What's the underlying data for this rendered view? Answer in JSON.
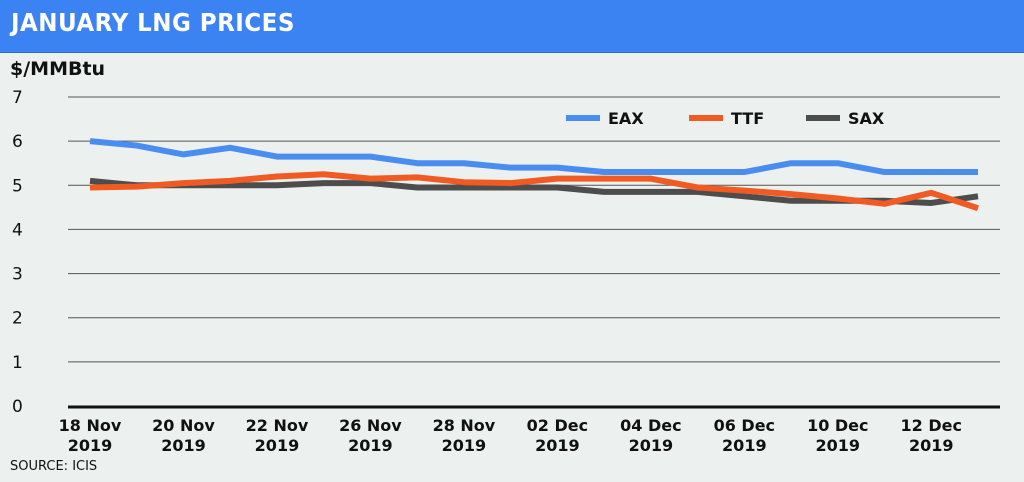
{
  "header": {
    "title": "JANUARY LNG PRICES"
  },
  "unit_label": "$/MMBtu",
  "source": "SOURCE: ICIS",
  "colors": {
    "title_bar": "#3b82f2",
    "EAX": "#4a8df0",
    "TTF": "#f05a23",
    "SAX": "#4d4d4d",
    "background": "#ecf1f0"
  },
  "chart_data": {
    "type": "line",
    "title": "JANUARY LNG PRICES",
    "xlabel": "",
    "ylabel": "$/MMBtu",
    "ylim": [
      0,
      7
    ],
    "yticks": [
      "0",
      "1",
      "2",
      "3",
      "4",
      "5",
      "6",
      "7"
    ],
    "grid": true,
    "legend_position": "top-right",
    "x": [
      "18 Nov 2019",
      "19 Nov 2019",
      "20 Nov 2019",
      "21 Nov 2019",
      "22 Nov 2019",
      "25 Nov 2019",
      "26 Nov 2019",
      "27 Nov 2019",
      "28 Nov 2019",
      "29 Nov 2019",
      "02 Dec 2019",
      "03 Dec 2019",
      "04 Dec 2019",
      "05 Dec 2019",
      "06 Dec 2019",
      "09 Dec 2019",
      "10 Dec 2019",
      "11 Dec 2019",
      "12 Dec 2019",
      "13 Dec 2019"
    ],
    "xtick_labels": [
      {
        "index": 0,
        "line1": "18 Nov",
        "line2": "2019"
      },
      {
        "index": 2,
        "line1": "20 Nov",
        "line2": "2019"
      },
      {
        "index": 4,
        "line1": "22 Nov",
        "line2": "2019"
      },
      {
        "index": 6,
        "line1": "26 Nov",
        "line2": "2019"
      },
      {
        "index": 8,
        "line1": "28 Nov",
        "line2": "2019"
      },
      {
        "index": 10,
        "line1": "02 Dec",
        "line2": "2019"
      },
      {
        "index": 12,
        "line1": "04 Dec",
        "line2": "2019"
      },
      {
        "index": 14,
        "line1": "06 Dec",
        "line2": "2019"
      },
      {
        "index": 16,
        "line1": "10 Dec",
        "line2": "2019"
      },
      {
        "index": 18,
        "line1": "12 Dec",
        "line2": "2019"
      }
    ],
    "series": [
      {
        "name": "EAX",
        "values": [
          6.0,
          5.9,
          5.7,
          5.85,
          5.65,
          5.65,
          5.65,
          5.5,
          5.5,
          5.4,
          5.4,
          5.3,
          5.3,
          5.3,
          5.3,
          5.5,
          5.5,
          5.3,
          5.3,
          5.3
        ]
      },
      {
        "name": "TTF",
        "values": [
          4.95,
          4.97,
          5.05,
          5.1,
          5.2,
          5.25,
          5.15,
          5.18,
          5.07,
          5.05,
          5.15,
          5.15,
          5.15,
          4.95,
          4.88,
          4.8,
          4.7,
          4.58,
          4.83,
          4.48
        ]
      },
      {
        "name": "SAX",
        "values": [
          5.1,
          5.0,
          5.0,
          5.0,
          5.0,
          5.05,
          5.05,
          4.95,
          4.95,
          4.95,
          4.95,
          4.85,
          4.85,
          4.85,
          4.75,
          4.65,
          4.65,
          4.65,
          4.6,
          4.75
        ]
      }
    ]
  }
}
